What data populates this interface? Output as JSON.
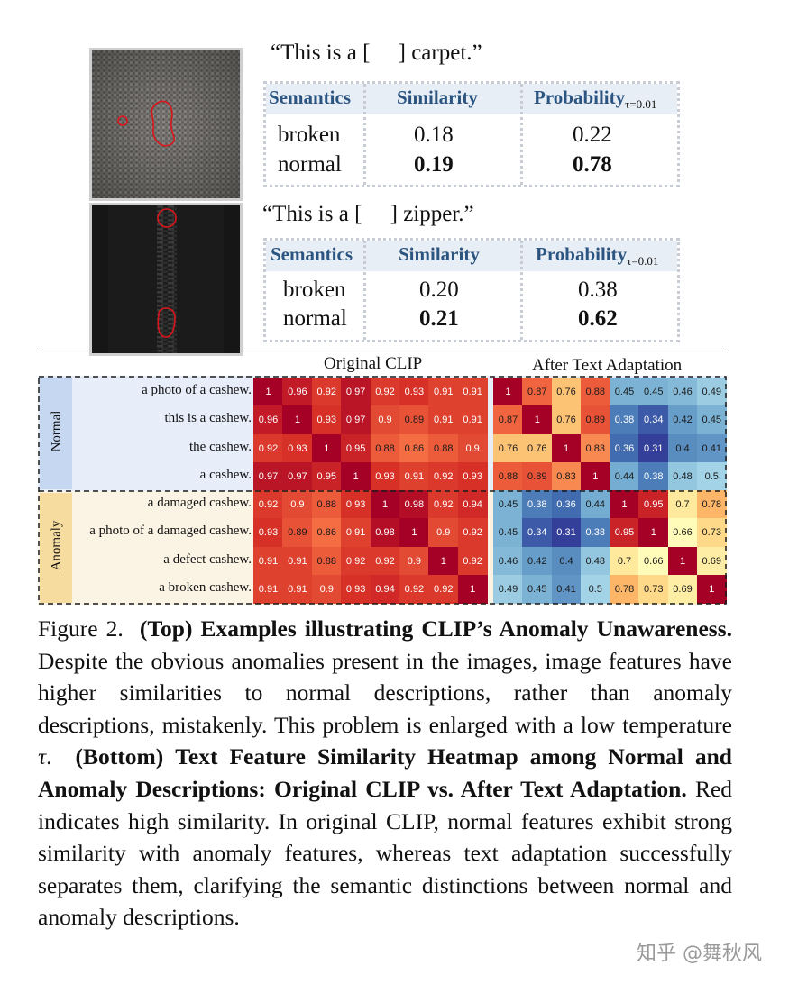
{
  "examples": [
    {
      "image_icon": "carpet-image",
      "prompt": "“This is a [     ] carpet.”",
      "headers": {
        "semantics": "Semantics",
        "similarity": "Similarity",
        "probability": "Probability",
        "probability_sub": "τ=0.01"
      },
      "rows": [
        {
          "semantics": "broken",
          "similarity": "0.18",
          "probability": "0.22",
          "bold": false
        },
        {
          "semantics": "normal",
          "similarity": "0.19",
          "probability": "0.78",
          "bold": true
        }
      ]
    },
    {
      "image_icon": "zipper-image",
      "prompt": "“This is a [     ] zipper.”",
      "headers": {
        "semantics": "Semantics",
        "similarity": "Similarity",
        "probability": "Probability",
        "probability_sub": "τ=0.01"
      },
      "rows": [
        {
          "semantics": "broken",
          "similarity": "0.20",
          "probability": "0.38",
          "bold": false
        },
        {
          "semantics": "normal",
          "similarity": "0.21",
          "probability": "0.62",
          "bold": true
        }
      ]
    }
  ],
  "heatmap": {
    "group_labels": [
      "Normal",
      "Anomaly"
    ],
    "row_labels": [
      "a photo of a cashew.",
      "this is a cashew.",
      "the cashew.",
      "a cashew.",
      "a damaged cashew.",
      "a photo of a damaged cashew.",
      "a defect cashew.",
      "a broken cashew."
    ],
    "colors": {
      "low": "#3a73b4",
      "high": "#b40f26",
      "normal_bg": "#e7eef9",
      "anomaly_bg": "#fbf4e4",
      "normal_tag": "#c6d7f1",
      "anomaly_tag": "#f7dca0"
    }
  },
  "chart_data": [
    {
      "type": "heatmap",
      "title": "Original CLIP",
      "rows": [
        "a photo of a cashew.",
        "this is a cashew.",
        "the cashew.",
        "a cashew.",
        "a damaged cashew.",
        "a photo of a damaged cashew.",
        "a defect cashew.",
        "a broken cashew."
      ],
      "values": [
        [
          1,
          0.96,
          0.92,
          0.97,
          0.92,
          0.93,
          0.91,
          0.91
        ],
        [
          0.96,
          1,
          0.93,
          0.97,
          0.9,
          0.89,
          0.91,
          0.91
        ],
        [
          0.92,
          0.93,
          1,
          0.95,
          0.88,
          0.86,
          0.88,
          0.9
        ],
        [
          0.97,
          0.97,
          0.95,
          1,
          0.93,
          0.91,
          0.92,
          0.93
        ],
        [
          0.92,
          0.9,
          0.88,
          0.93,
          1,
          0.98,
          0.92,
          0.94
        ],
        [
          0.93,
          0.89,
          0.86,
          0.91,
          0.98,
          1,
          0.9,
          0.92
        ],
        [
          0.91,
          0.91,
          0.88,
          0.92,
          0.92,
          0.9,
          1,
          0.92
        ],
        [
          0.91,
          0.91,
          0.9,
          0.93,
          0.94,
          0.92,
          0.92,
          1
        ]
      ],
      "color_range": [
        0.3,
        1
      ]
    },
    {
      "type": "heatmap",
      "title": "After Text Adaptation",
      "rows": [
        "a photo of a cashew.",
        "this is a cashew.",
        "the cashew.",
        "a cashew.",
        "a damaged cashew.",
        "a photo of a damaged cashew.",
        "a defect cashew.",
        "a broken cashew."
      ],
      "values": [
        [
          1,
          0.87,
          0.76,
          0.88,
          0.45,
          0.45,
          0.46,
          0.49
        ],
        [
          0.87,
          1,
          0.76,
          0.89,
          0.38,
          0.34,
          0.42,
          0.45
        ],
        [
          0.76,
          0.76,
          1,
          0.83,
          0.36,
          0.31,
          0.4,
          0.41
        ],
        [
          0.88,
          0.89,
          0.83,
          1,
          0.44,
          0.38,
          0.48,
          0.5
        ],
        [
          0.45,
          0.38,
          0.36,
          0.44,
          1,
          0.95,
          0.7,
          0.78
        ],
        [
          0.45,
          0.34,
          0.31,
          0.38,
          0.95,
          1,
          0.66,
          0.73
        ],
        [
          0.46,
          0.42,
          0.4,
          0.48,
          0.7,
          0.66,
          1,
          0.69
        ],
        [
          0.49,
          0.45,
          0.41,
          0.5,
          0.78,
          0.73,
          0.69,
          1
        ]
      ],
      "color_range": [
        0.3,
        1
      ]
    }
  ],
  "caption": {
    "figure_label": "Figure 2.",
    "top_bold": "(Top) Examples illustrating CLIP’s Anomaly Unawareness.",
    "top_text": "Despite the obvious anomalies present in the images, image features have higher similarities to normal descriptions, rather than anomaly descriptions, mistakenly. This problem is enlarged with a low temperature",
    "tau": "τ",
    "after_tau": ".",
    "bottom_bold": "(Bottom) Text Feature Similarity Heatmap among Normal and Anomaly Descriptions: Original CLIP vs. After Text Adaptation.",
    "bottom_text": "Red indicates high similarity. In original CLIP, normal features exhibit strong similarity with anomaly features, whereas text adaptation successfully separates them, clarifying the semantic distinctions between normal and anomaly descriptions."
  },
  "watermark": "知乎 @舞秋风"
}
